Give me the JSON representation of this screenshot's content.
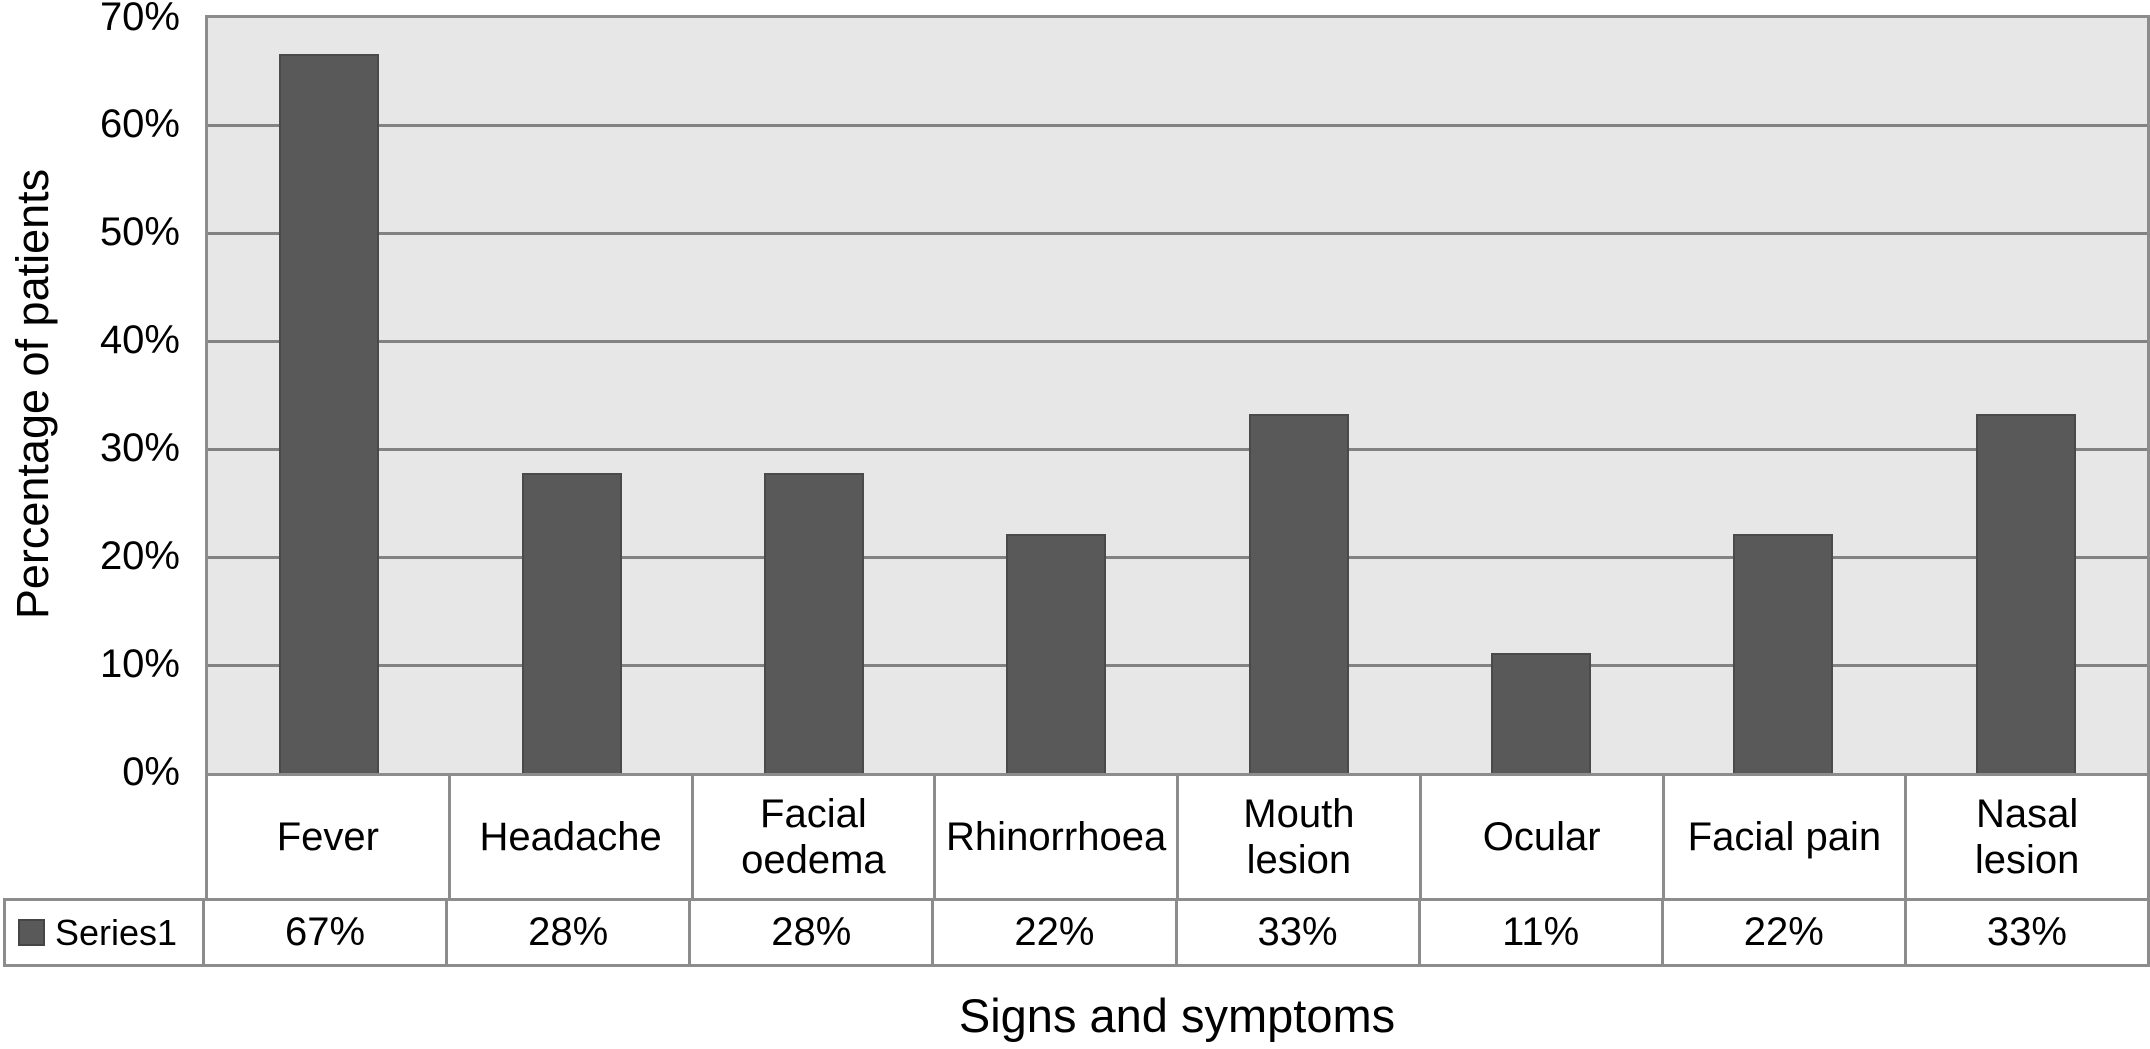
{
  "chart_data": {
    "type": "bar",
    "title": "",
    "xlabel": "Signs and symptoms",
    "ylabel": "Percentage of patients",
    "categories": [
      "Fever",
      "Headache",
      "Facial oedema",
      "Rhinorrhoea",
      "Mouth lesion",
      "Ocular",
      "Facial pain",
      "Nasal lesion"
    ],
    "category_display": [
      "Fever",
      "Headache",
      "Facial\noedema",
      "Rhinorrhoea",
      "Mouth\nlesion",
      "Ocular",
      "Facial pain",
      "Nasal\nlesion"
    ],
    "series": [
      {
        "name": "Series1",
        "values_percent": [
          66.7,
          27.8,
          27.8,
          22.2,
          33.3,
          11.1,
          22.2,
          33.3
        ],
        "value_labels": [
          "67%",
          "28%",
          "28%",
          "22%",
          "33%",
          "11%",
          "22%",
          "33%"
        ]
      }
    ],
    "ylim": [
      0,
      70
    ],
    "y_tick_step": 10,
    "y_ticks_top_to_bottom": [
      "70%",
      "60%",
      "50%",
      "40%",
      "30%",
      "20%",
      "10%",
      "0%"
    ],
    "grid": "horizontal",
    "legend_position": "bottom-table-left",
    "legend_swatch": "filled-square",
    "colors": {
      "bar_fill": "#595959",
      "bar_border": "#4a4a4a",
      "plot_background": "#e7e7e7",
      "gridline": "#828282",
      "table_border": "#8c8c8c",
      "text": "#000000",
      "page_background": "#ffffff"
    }
  }
}
